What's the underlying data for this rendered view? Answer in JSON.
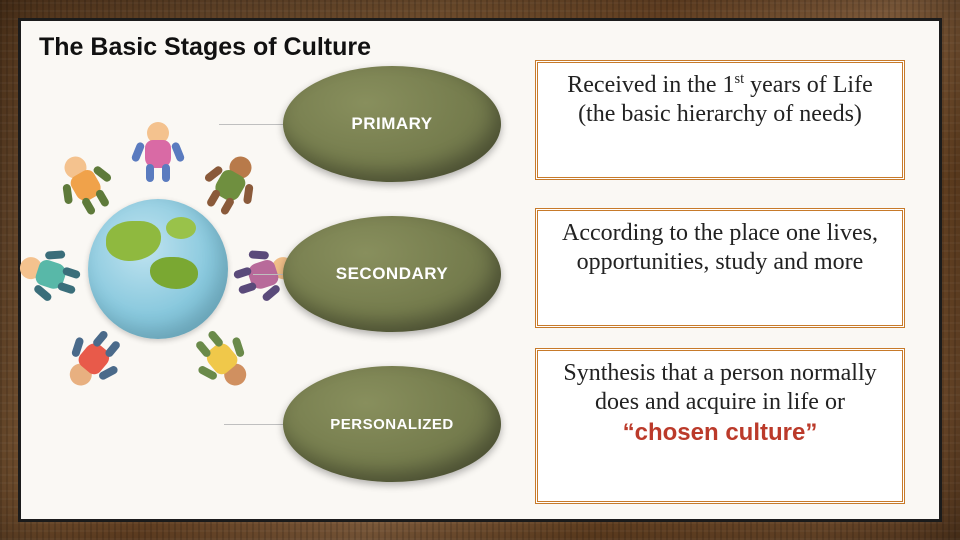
{
  "title": "The Basic Stages of Culture",
  "stages": {
    "primary": {
      "label": "PRIMARY"
    },
    "secondary": {
      "label": "SECONDARY"
    },
    "personalized": {
      "label": "PERSONALIZED"
    }
  },
  "descriptions": {
    "primary_html": "Received in the 1<sup>st</sup> years of Life (the basic hierarchy of needs)",
    "secondary": "According to the place one lives, opportunities, study and more",
    "personalized_pre": "Synthesis that a person normally does and acquire in life or",
    "personalized_chosen": "“chosen culture”"
  },
  "colors": {
    "panel_bg": "#faf8f4",
    "panel_border": "#1b1b1b",
    "oval_gradient_from": "#888f5d",
    "oval_gradient_mid": "#757c4d",
    "oval_gradient_to": "#5e6341",
    "desc_border": "#c77a2a",
    "chosen_text": "#bb3a2a",
    "wood_dark": "#5a3a1e",
    "wood_light": "#8a6340"
  },
  "layout": {
    "slide_w": 960,
    "slide_h": 540,
    "oval_w": 218,
    "oval_h": 116,
    "desc_w": 370,
    "title_fontsize": 25,
    "oval_fontsize": 17,
    "desc_fontsize": 24
  }
}
